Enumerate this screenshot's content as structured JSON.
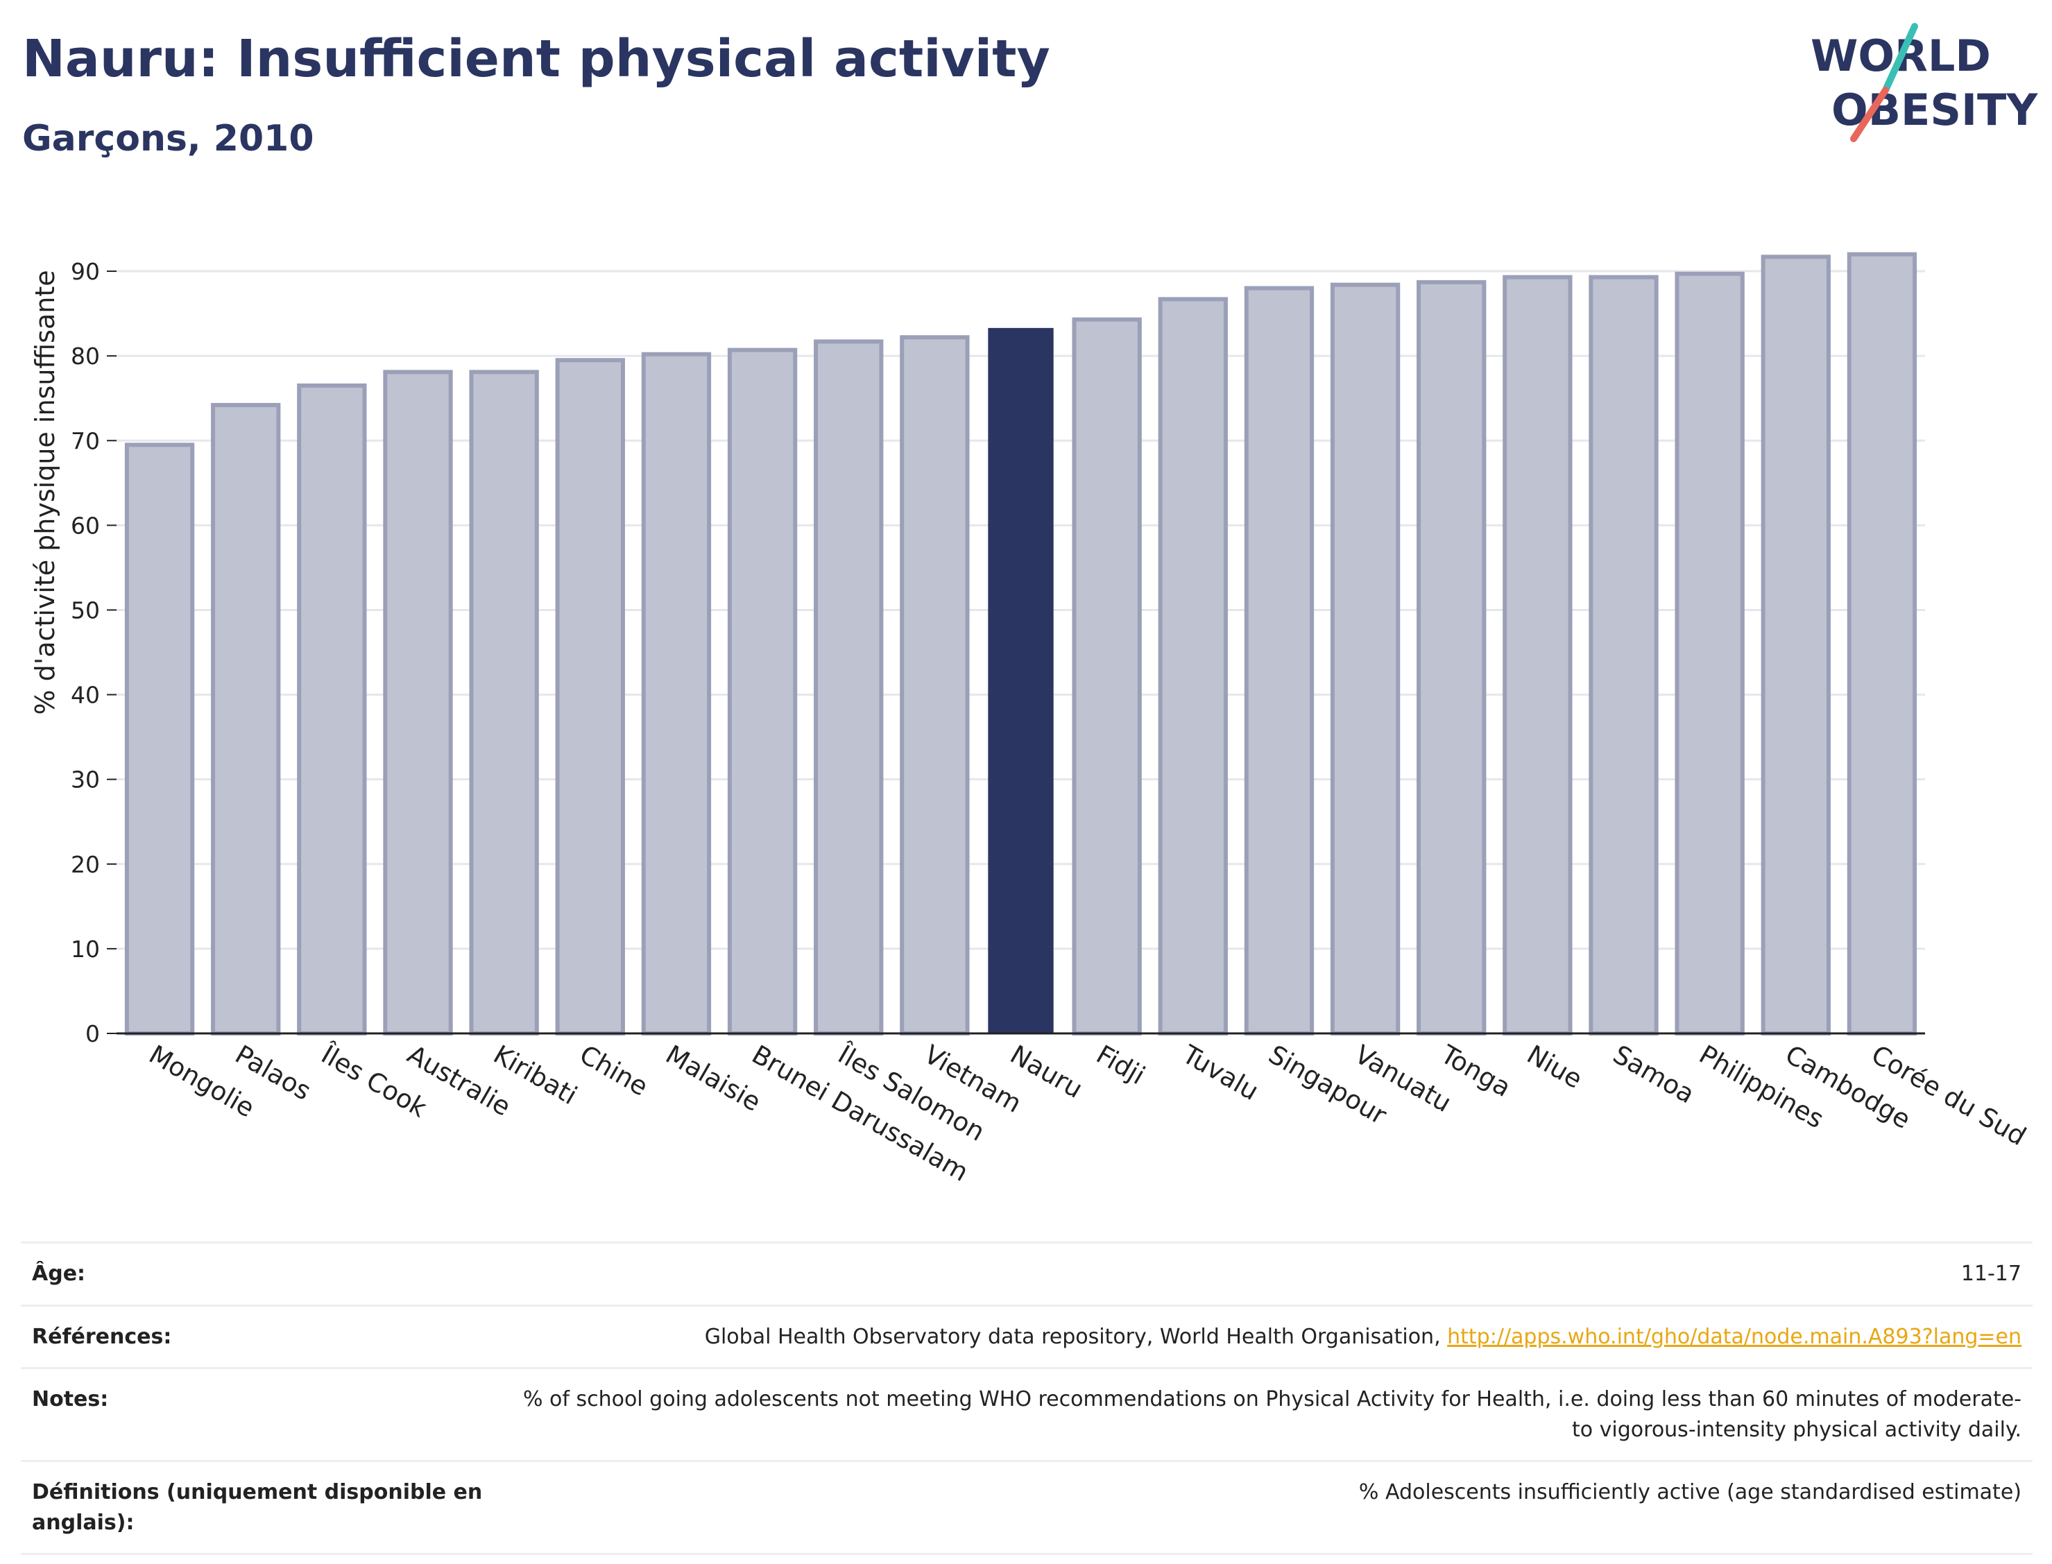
{
  "header": {
    "title": "Nauru: Insufficient physical activity",
    "subtitle": "Garçons, 2010"
  },
  "logo": {
    "line1": "WORLD",
    "line2": "OBESITY",
    "text_color": "#2b3561",
    "slash_top_color": "#3bbfb4",
    "slash_bottom_color": "#e8675a"
  },
  "colors": {
    "bar_fill": "#bfc2d1",
    "bar_stroke": "#9ba0b8",
    "highlight_fill": "#2b3561",
    "grid": "#e6e7ec",
    "axis": "#222222"
  },
  "chart_data": {
    "type": "bar",
    "ylabel": "% d'activité physique insuffisante",
    "xlabel": "",
    "ylim": [
      0,
      95
    ],
    "yticks": [
      0,
      10,
      20,
      30,
      40,
      50,
      60,
      70,
      80,
      90
    ],
    "grid": true,
    "highlight": "Nauru",
    "categories": [
      "Mongolie",
      "Palaos",
      "Îles Cook",
      "Australie",
      "Kiribati",
      "Chine",
      "Malaisie",
      "Brunei Darussalam",
      "Îles Salomon",
      "Vietnam",
      "Nauru",
      "Fidji",
      "Tuvalu",
      "Singapour",
      "Vanuatu",
      "Tonga",
      "Niue",
      "Samoa",
      "Philippines",
      "Cambodge",
      "Corée du Sud"
    ],
    "values": [
      69.5,
      74.2,
      76.5,
      78.1,
      78.1,
      79.5,
      80.2,
      80.7,
      81.7,
      82.2,
      83.3,
      84.3,
      86.7,
      88.0,
      88.4,
      88.7,
      89.3,
      89.3,
      89.7,
      91.7,
      92.0
    ]
  },
  "footer": {
    "rows": [
      {
        "label": "Âge:",
        "value": "11-17"
      },
      {
        "label": "Références:",
        "value": "Global Health Observatory data repository, World Health Organisation, ",
        "link": "http://apps.who.int/gho/data/node.main.A893?lang=en"
      },
      {
        "label": "Notes:",
        "value": "% of school going adolescents not meeting WHO recommendations on Physical Activity for Health, i.e. doing less than 60 minutes of moderate- to vigorous-intensity physical activity daily."
      },
      {
        "label": "Définitions (uniquement disponible en anglais):",
        "value": "% Adolescents insufficiently active (age standardised estimate)"
      }
    ]
  }
}
